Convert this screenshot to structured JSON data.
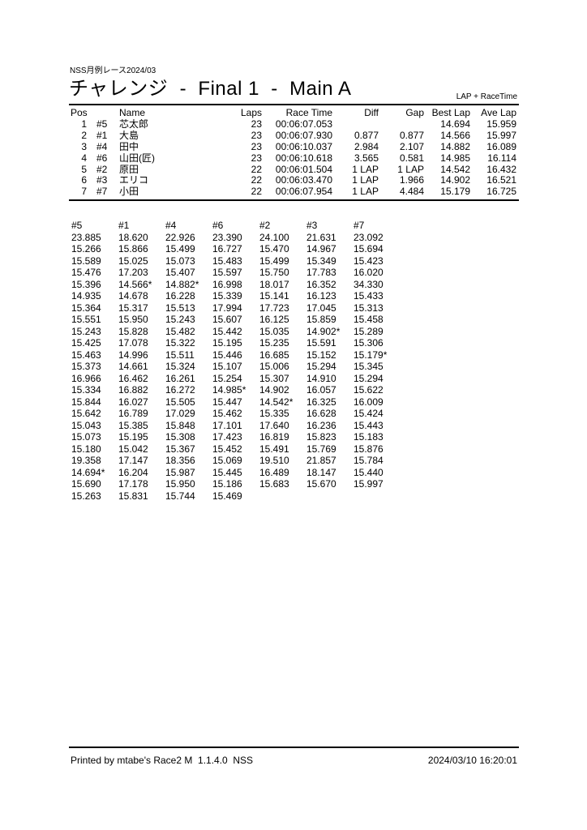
{
  "header": {
    "event": "NSS月例レース2024/03",
    "title": "チャレンジ  -  Final 1  -  Main A",
    "mode": "LAP + RaceTime"
  },
  "results": {
    "columns": [
      "Pos",
      "",
      "Name",
      "Laps",
      "Race Time",
      "Diff",
      "Gap",
      "Best Lap",
      "Ave Lap"
    ],
    "rows": [
      {
        "pos": "1",
        "car": "#5",
        "name": "芯太郎",
        "laps": "23",
        "race_time": "00:06:07.053",
        "diff": "",
        "gap": "",
        "best_lap": "14.694",
        "ave_lap": "15.959"
      },
      {
        "pos": "2",
        "car": "#1",
        "name": "大島",
        "laps": "23",
        "race_time": "00:06:07.930",
        "diff": "0.877",
        "gap": "0.877",
        "best_lap": "14.566",
        "ave_lap": "15.997"
      },
      {
        "pos": "3",
        "car": "#4",
        "name": "田中",
        "laps": "23",
        "race_time": "00:06:10.037",
        "diff": "2.984",
        "gap": "2.107",
        "best_lap": "14.882",
        "ave_lap": "16.089"
      },
      {
        "pos": "4",
        "car": "#6",
        "name": "山田(匠)",
        "laps": "23",
        "race_time": "00:06:10.618",
        "diff": "3.565",
        "gap": "0.581",
        "best_lap": "14.985",
        "ave_lap": "16.114"
      },
      {
        "pos": "5",
        "car": "#2",
        "name": "原田",
        "laps": "22",
        "race_time": "00:06:01.504",
        "diff": "1 LAP",
        "gap": "1 LAP",
        "best_lap": "14.542",
        "ave_lap": "16.432"
      },
      {
        "pos": "6",
        "car": "#3",
        "name": "エリコ",
        "laps": "22",
        "race_time": "00:06:03.470",
        "diff": "1 LAP",
        "gap": "1.966",
        "best_lap": "14.902",
        "ave_lap": "16.521"
      },
      {
        "pos": "7",
        "car": "#7",
        "name": "小田",
        "laps": "22",
        "race_time": "00:06:07.954",
        "diff": "1 LAP",
        "gap": "4.484",
        "best_lap": "15.179",
        "ave_lap": "16.725"
      }
    ]
  },
  "lap_table": {
    "columns": [
      "#5",
      "#1",
      "#4",
      "#6",
      "#2",
      "#3",
      "#7"
    ],
    "rows": [
      [
        "23.885",
        "18.620",
        "22.926",
        "23.390",
        "24.100",
        "21.631",
        "23.092"
      ],
      [
        "15.266",
        "15.866",
        "15.499",
        "16.727",
        "15.470",
        "14.967",
        "15.694"
      ],
      [
        "15.589",
        "15.025",
        "15.073",
        "15.483",
        "15.499",
        "15.349",
        "15.423"
      ],
      [
        "15.476",
        "17.203",
        "15.407",
        "15.597",
        "15.750",
        "17.783",
        "16.020"
      ],
      [
        "15.396",
        "14.566*",
        "14.882*",
        "16.998",
        "18.017",
        "16.352",
        "34.330"
      ],
      [
        "14.935",
        "14.678",
        "16.228",
        "15.339",
        "15.141",
        "16.123",
        "15.433"
      ],
      [
        "15.364",
        "15.317",
        "15.513",
        "17.994",
        "17.723",
        "17.045",
        "15.313"
      ],
      [
        "15.551",
        "15.950",
        "15.243",
        "15.607",
        "16.125",
        "15.859",
        "15.458"
      ],
      [
        "15.243",
        "15.828",
        "15.482",
        "15.442",
        "15.035",
        "14.902*",
        "15.289"
      ],
      [
        "15.425",
        "17.078",
        "15.322",
        "15.195",
        "15.235",
        "15.591",
        "15.306"
      ],
      [
        "15.463",
        "14.996",
        "15.511",
        "15.446",
        "16.685",
        "15.152",
        "15.179*"
      ],
      [
        "15.373",
        "14.661",
        "15.324",
        "15.107",
        "15.006",
        "15.294",
        "15.345"
      ],
      [
        "16.966",
        "16.462",
        "16.261",
        "15.254",
        "15.307",
        "14.910",
        "15.294"
      ],
      [
        "15.334",
        "16.882",
        "16.272",
        "14.985*",
        "14.902",
        "16.057",
        "15.622"
      ],
      [
        "15.844",
        "16.027",
        "15.505",
        "15.447",
        "14.542*",
        "16.325",
        "16.009"
      ],
      [
        "15.642",
        "16.789",
        "17.029",
        "15.462",
        "15.335",
        "16.628",
        "15.424"
      ],
      [
        "15.043",
        "15.385",
        "15.848",
        "17.101",
        "17.640",
        "16.236",
        "15.443"
      ],
      [
        "15.073",
        "15.195",
        "15.308",
        "17.423",
        "16.819",
        "15.823",
        "15.183"
      ],
      [
        "15.180",
        "15.042",
        "15.367",
        "15.452",
        "15.491",
        "15.769",
        "15.876"
      ],
      [
        "19.358",
        "17.147",
        "18.356",
        "15.069",
        "19.510",
        "21.857",
        "15.784"
      ],
      [
        "14.694*",
        "16.204",
        "15.987",
        "15.445",
        "16.489",
        "18.147",
        "15.440"
      ],
      [
        "15.690",
        "17.178",
        "15.950",
        "15.186",
        "15.683",
        "15.670",
        "15.997"
      ],
      [
        "15.263",
        "15.831",
        "15.744",
        "15.469",
        "",
        "",
        ""
      ]
    ]
  },
  "footer": {
    "printed_by": "Printed by mtabe's Race2 M  1.1.4.0  NSS",
    "datetime": "2024/03/10 16:20:01"
  }
}
